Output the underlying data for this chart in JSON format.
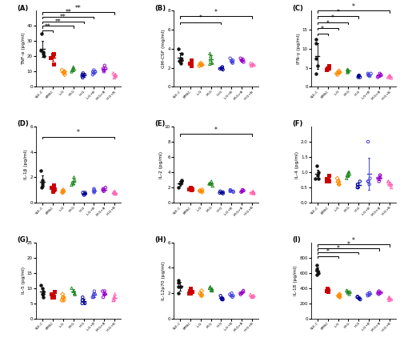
{
  "groups": [
    "SLE-C",
    "BMSC",
    "L-G",
    "M-G",
    "H-G",
    "L-G+B",
    "M-G+B",
    "H-G+B"
  ],
  "colors": [
    "#111111",
    "#cc0000",
    "#ff8c00",
    "#228b22",
    "#000099",
    "#4444dd",
    "#9900cc",
    "#ff69b4"
  ],
  "markers": [
    "o",
    "s",
    "D",
    "^",
    "o",
    "o",
    "o",
    "^"
  ],
  "filled": [
    true,
    true,
    false,
    false,
    false,
    false,
    false,
    false
  ],
  "panels": {
    "A": {
      "label": "(A)",
      "ylabel": "TNF-α (pg/ml)",
      "ylim": [
        0,
        50
      ],
      "yticks": [
        0,
        10,
        20,
        30,
        40
      ],
      "data": [
        [
          24,
          23,
          35,
          22,
          20
        ],
        [
          22,
          19,
          21,
          15,
          20
        ],
        [
          9,
          11,
          10,
          8,
          10
        ],
        [
          11,
          13,
          12,
          10,
          11
        ],
        [
          7,
          8,
          6,
          8,
          9
        ],
        [
          10,
          11,
          9,
          10,
          8
        ],
        [
          12,
          14,
          11,
          12,
          10
        ],
        [
          8,
          7,
          9,
          6,
          7
        ]
      ],
      "sig_bars": [
        [
          0,
          1,
          "**",
          37
        ],
        [
          0,
          3,
          "**",
          40
        ],
        [
          0,
          4,
          "**",
          43
        ],
        [
          0,
          5,
          "**",
          46
        ],
        [
          0,
          7,
          "**",
          49
        ]
      ]
    },
    "B": {
      "label": "(B)",
      "ylabel": "GM-CSF (mg/ml)",
      "ylim": [
        0,
        8
      ],
      "yticks": [
        0,
        2,
        4,
        6,
        8
      ],
      "data": [
        [
          2.8,
          3.0,
          3.5,
          4.0,
          2.7,
          2.5
        ],
        [
          2.5,
          2.2,
          2.8,
          2.4,
          2.5
        ],
        [
          2.3,
          2.4,
          2.5,
          2.2,
          2.3
        ],
        [
          2.4,
          3.2,
          2.8,
          3.5,
          2.5
        ],
        [
          1.9,
          2.0,
          1.8,
          1.9,
          2.1
        ],
        [
          2.7,
          2.5,
          2.8,
          3.0,
          2.6
        ],
        [
          2.8,
          2.6,
          2.9,
          2.7,
          3.0
        ],
        [
          2.3,
          2.4,
          2.2,
          2.5,
          2.3
        ]
      ],
      "sig_bars": [
        [
          0,
          4,
          "*",
          6.8
        ],
        [
          0,
          7,
          "*",
          7.4
        ]
      ]
    },
    "C": {
      "label": "(C)",
      "ylabel": "IFN-γ (pg/ml)",
      "ylim": [
        0,
        20
      ],
      "yticks": [
        0,
        5,
        10,
        15
      ],
      "data": [
        [
          11.5,
          7.5,
          5.5,
          12.5,
          3.5
        ],
        [
          5.0,
          4.5,
          5.5,
          5.0,
          4.8
        ],
        [
          3.5,
          3.8,
          4.2,
          3.2,
          3.8
        ],
        [
          4.0,
          4.5,
          3.8,
          4.2,
          4.5
        ],
        [
          2.5,
          3.0,
          2.8,
          2.5,
          3.0
        ],
        [
          3.5,
          3.0,
          2.8,
          3.5,
          3.2
        ],
        [
          3.0,
          2.8,
          3.2,
          2.5,
          3.5
        ],
        [
          2.5,
          2.8,
          2.3,
          3.0,
          2.8
        ]
      ],
      "sig_bars": [
        [
          0,
          1,
          "*",
          14
        ],
        [
          0,
          2,
          "*",
          15.5
        ],
        [
          0,
          3,
          "*",
          17
        ],
        [
          0,
          4,
          "*",
          18.5
        ],
        [
          0,
          7,
          "*",
          20
        ]
      ]
    },
    "D": {
      "label": "(D)",
      "ylabel": "IL-1β (pg/ml)",
      "ylim": [
        0,
        6
      ],
      "yticks": [
        0,
        2,
        4,
        6
      ],
      "data": [
        [
          1.2,
          1.5,
          1.8,
          2.5,
          1.3
        ],
        [
          1.0,
          1.2,
          1.4,
          0.9,
          1.1
        ],
        [
          0.8,
          1.0,
          0.9,
          0.8,
          0.9
        ],
        [
          1.5,
          1.8,
          2.0,
          1.6,
          1.4
        ],
        [
          0.7,
          0.8,
          0.6,
          0.7,
          0.8
        ],
        [
          0.9,
          1.0,
          0.8,
          0.9,
          1.1
        ],
        [
          1.0,
          1.2,
          0.9,
          1.1,
          1.0
        ],
        [
          0.8,
          0.7,
          0.9,
          0.8,
          0.7
        ]
      ],
      "sig_bars": [
        [
          0,
          7,
          "*",
          5.2
        ]
      ]
    },
    "E": {
      "label": "(E)",
      "ylabel": "IL-2 (pg/ml)",
      "ylim": [
        0,
        10
      ],
      "yticks": [
        0,
        2,
        4,
        6,
        8,
        10
      ],
      "data": [
        [
          2.5,
          2.0,
          3.0,
          2.8,
          2.5
        ],
        [
          1.8,
          2.0,
          1.9,
          1.7,
          1.8
        ],
        [
          1.5,
          1.6,
          1.7,
          1.4,
          1.5
        ],
        [
          2.5,
          2.5,
          2.5,
          2.8,
          2.2
        ],
        [
          1.3,
          1.4,
          1.2,
          1.3,
          1.5
        ],
        [
          1.5,
          1.6,
          1.4,
          1.5,
          1.7
        ],
        [
          1.5,
          1.7,
          1.4,
          1.6,
          1.5
        ],
        [
          1.3,
          1.2,
          1.4,
          1.3,
          1.5
        ]
      ],
      "sig_bars": [
        [
          0,
          7,
          "*",
          9.0
        ]
      ]
    },
    "F": {
      "label": "(F)",
      "ylabel": "IL-4 (pg/ml)",
      "ylim": [
        0.0,
        2.5
      ],
      "yticks": [
        0.0,
        0.5,
        1.0,
        1.5,
        2.0
      ],
      "data": [
        [
          0.8,
          1.0,
          1.2,
          0.9,
          0.8
        ],
        [
          0.7,
          0.8,
          0.9,
          0.7,
          0.8
        ],
        [
          0.6,
          0.7,
          0.8,
          0.6,
          0.7
        ],
        [
          0.9,
          1.0,
          0.8,
          0.9,
          1.0
        ],
        [
          0.5,
          0.6,
          0.7,
          0.5,
          0.6
        ],
        [
          0.7,
          0.8,
          0.6,
          2.0,
          0.7
        ],
        [
          0.8,
          0.9,
          0.7,
          0.8,
          0.9
        ],
        [
          0.6,
          0.7,
          0.5,
          0.6,
          0.7
        ]
      ],
      "sig_bars": []
    },
    "G": {
      "label": "(G)",
      "ylabel": "IL-5 (pg/ml)",
      "ylim": [
        0,
        25
      ],
      "yticks": [
        0,
        5,
        10,
        15,
        20,
        25
      ],
      "data": [
        [
          8,
          10,
          9,
          11,
          8,
          7
        ],
        [
          7,
          8,
          9,
          8,
          7
        ],
        [
          6,
          7,
          8,
          7,
          6
        ],
        [
          8,
          9,
          10,
          8,
          9
        ],
        [
          5,
          6,
          7,
          6,
          5
        ],
        [
          7,
          8,
          9,
          8,
          7
        ],
        [
          8,
          9,
          7,
          8,
          9
        ],
        [
          6,
          7,
          8,
          6,
          7
        ]
      ],
      "sig_bars": []
    },
    "H": {
      "label": "(H)",
      "ylabel": "IL-12p70 (pg/ml)",
      "ylim": [
        0,
        6
      ],
      "yticks": [
        0,
        2,
        4,
        6
      ],
      "data": [
        [
          2.5,
          2.0,
          2.8,
          3.0,
          2.5
        ],
        [
          2.0,
          2.2,
          2.4,
          2.0,
          2.1
        ],
        [
          1.8,
          2.0,
          2.2,
          1.8,
          1.9
        ],
        [
          2.2,
          2.5,
          2.4,
          2.2,
          2.3
        ],
        [
          1.5,
          1.6,
          1.8,
          1.5,
          1.6
        ],
        [
          1.8,
          2.0,
          1.9,
          1.8,
          1.7
        ],
        [
          2.0,
          2.2,
          2.0,
          1.9,
          2.1
        ],
        [
          1.7,
          1.8,
          1.9,
          1.7,
          1.8
        ]
      ],
      "sig_bars": []
    },
    "I": {
      "label": "(I)",
      "ylabel": "IL-18 (pg/ml)",
      "ylim": [
        0,
        1000
      ],
      "yticks": [
        0,
        200,
        400,
        600,
        800
      ],
      "data": [
        [
          600,
          650,
          700,
          580,
          620
        ],
        [
          380,
          350,
          400,
          370,
          390
        ],
        [
          300,
          280,
          320,
          290,
          310
        ],
        [
          350,
          320,
          370,
          340,
          360
        ],
        [
          270,
          250,
          290,
          260,
          280
        ],
        [
          320,
          300,
          340,
          310,
          330
        ],
        [
          340,
          320,
          360,
          330,
          350
        ],
        [
          260,
          240,
          280,
          250,
          270
        ]
      ],
      "sig_bars": [
        [
          0,
          2,
          "*",
          820
        ],
        [
          0,
          4,
          "*",
          870
        ],
        [
          0,
          6,
          "*",
          920
        ],
        [
          0,
          7,
          "*",
          970
        ]
      ]
    }
  }
}
